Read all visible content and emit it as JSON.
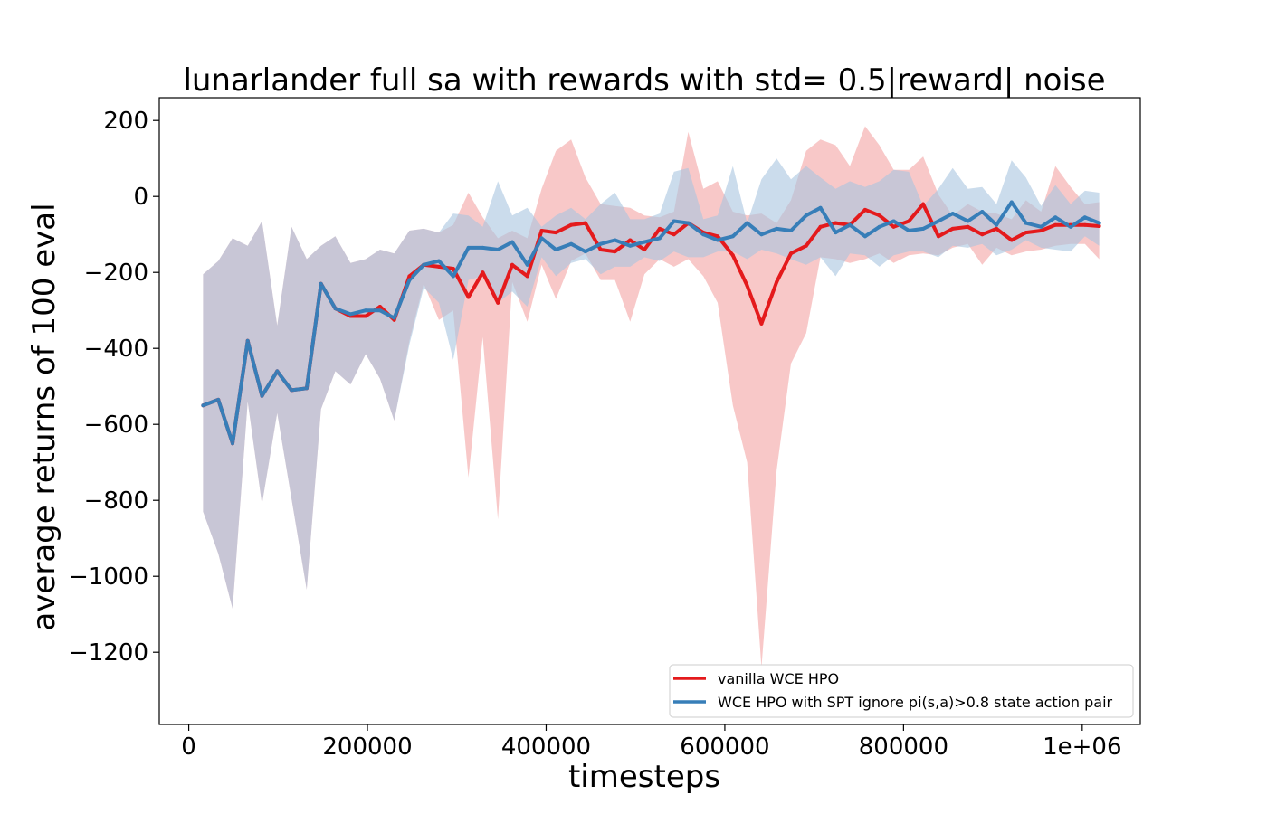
{
  "chart_data": {
    "type": "line",
    "title": "lunarlander full sa with rewards with std= 0.5|reward| noise",
    "xlabel": "timesteps",
    "ylabel": "average returns of 100 eval",
    "xlim": [
      -33000,
      1065000
    ],
    "ylim": [
      -1390,
      260
    ],
    "xticks": [
      0,
      200000,
      400000,
      600000,
      800000,
      1000000
    ],
    "xtick_labels": [
      "0",
      "200000",
      "400000",
      "600000",
      "800000",
      "1e+06"
    ],
    "yticks": [
      200,
      0,
      -200,
      -400,
      -600,
      -800,
      -1000,
      -1200
    ],
    "ytick_labels": [
      "200",
      "0",
      "−200",
      "−400",
      "−600",
      "−800",
      "−1000",
      "−1200"
    ],
    "grid": false,
    "legend_position": "bottom-right",
    "x": [
      16000,
      33000,
      49000,
      66000,
      82000,
      99000,
      115000,
      132000,
      148000,
      164000,
      181000,
      198000,
      214000,
      230000,
      247000,
      263000,
      280000,
      296000,
      313000,
      329000,
      346000,
      362000,
      379000,
      395000,
      411000,
      428000,
      444000,
      461000,
      477000,
      494000,
      510000,
      527000,
      543000,
      559000,
      576000,
      592000,
      609000,
      625000,
      641000,
      658000,
      674000,
      691000,
      707000,
      724000,
      740000,
      757000,
      773000,
      789000,
      806000,
      822000,
      839000,
      855000,
      872000,
      888000,
      904000,
      921000,
      937000,
      954000,
      970000,
      987000,
      1003000,
      1019000
    ],
    "series": [
      {
        "name": "vanilla WCE HPO",
        "color": "#e41a1c",
        "band_color": "#f4a3a4",
        "mean": [
          -550,
          -535,
          -650,
          -380,
          -525,
          -460,
          -510,
          -505,
          -230,
          -295,
          -315,
          -315,
          -290,
          -325,
          -210,
          -180,
          -185,
          -190,
          -265,
          -200,
          -280,
          -180,
          -210,
          -90,
          -95,
          -75,
          -70,
          -140,
          -145,
          -115,
          -140,
          -85,
          -100,
          -70,
          -95,
          -105,
          -155,
          -235,
          -335,
          -225,
          -150,
          -130,
          -80,
          -70,
          -75,
          -35,
          -50,
          -80,
          -65,
          -20,
          -105,
          -85,
          -80,
          -100,
          -85,
          -115,
          -95,
          -90,
          -75,
          -75,
          -75,
          -78
        ],
        "upper": [
          -205,
          -170,
          -110,
          -130,
          -65,
          -340,
          -80,
          -165,
          -130,
          -105,
          -175,
          -165,
          -140,
          -150,
          -90,
          -85,
          -95,
          -75,
          10,
          -55,
          -110,
          -90,
          -110,
          20,
          120,
          150,
          50,
          -20,
          -25,
          -30,
          -50,
          -55,
          -40,
          170,
          20,
          40,
          -40,
          -50,
          -45,
          -70,
          -10,
          120,
          150,
          135,
          80,
          185,
          135,
          70,
          70,
          105,
          5,
          -50,
          -20,
          -40,
          -45,
          -60,
          -10,
          -40,
          80,
          25,
          -20,
          -15
        ],
        "lower": [
          -830,
          -940,
          -1085,
          -540,
          -810,
          -570,
          -795,
          -1035,
          -560,
          -460,
          -495,
          -415,
          -480,
          -590,
          -380,
          -230,
          -325,
          -300,
          -740,
          -370,
          -850,
          -225,
          -330,
          -180,
          -270,
          -170,
          -150,
          -220,
          -220,
          -330,
          -205,
          -165,
          -185,
          -165,
          -210,
          -280,
          -550,
          -700,
          -1240,
          -720,
          -440,
          -360,
          -160,
          -165,
          -175,
          -165,
          -150,
          -175,
          -155,
          -150,
          -155,
          -135,
          -125,
          -180,
          -135,
          -155,
          -145,
          -140,
          -130,
          -125,
          -125,
          -165
        ]
      },
      {
        "name": "WCE HPO with SPT ignore pi(s,a)>0.8 state action pair",
        "color": "#377eb8",
        "band_color": "#a9c4e0",
        "mean": [
          -550,
          -535,
          -650,
          -380,
          -525,
          -460,
          -510,
          -505,
          -230,
          -295,
          -310,
          -300,
          -300,
          -320,
          -220,
          -180,
          -170,
          -210,
          -135,
          -135,
          -140,
          -120,
          -180,
          -110,
          -140,
          -125,
          -145,
          -125,
          -115,
          -130,
          -120,
          -110,
          -65,
          -70,
          -100,
          -115,
          -105,
          -70,
          -100,
          -85,
          -90,
          -50,
          -30,
          -95,
          -75,
          -105,
          -80,
          -65,
          -90,
          -85,
          -65,
          -45,
          -65,
          -40,
          -75,
          -15,
          -70,
          -80,
          -55,
          -80,
          -55,
          -70
        ],
        "upper": [
          -205,
          -170,
          -110,
          -130,
          -65,
          -340,
          -80,
          -165,
          -130,
          -105,
          -175,
          -165,
          -140,
          -150,
          -90,
          -85,
          -95,
          -45,
          -50,
          -80,
          40,
          -50,
          -30,
          -80,
          -50,
          -30,
          -60,
          -20,
          10,
          -60,
          -60,
          -45,
          65,
          75,
          -60,
          -50,
          80,
          -70,
          45,
          100,
          45,
          80,
          50,
          20,
          40,
          25,
          40,
          70,
          65,
          -25,
          20,
          75,
          20,
          25,
          -20,
          95,
          50,
          -25,
          30,
          -20,
          15,
          10
        ],
        "lower": [
          -830,
          -940,
          -1085,
          -540,
          -810,
          -570,
          -795,
          -1035,
          -560,
          -460,
          -495,
          -415,
          -480,
          -590,
          -390,
          -240,
          -280,
          -430,
          -220,
          -210,
          -280,
          -250,
          -290,
          -160,
          -210,
          -175,
          -165,
          -205,
          -185,
          -185,
          -160,
          -170,
          -145,
          -160,
          -160,
          -145,
          -145,
          -165,
          -140,
          -150,
          -165,
          -180,
          -160,
          -210,
          -150,
          -155,
          -185,
          -155,
          -145,
          -145,
          -160,
          -130,
          -135,
          -125,
          -155,
          -140,
          -115,
          -135,
          -140,
          -145,
          -105,
          -130
        ]
      }
    ]
  }
}
